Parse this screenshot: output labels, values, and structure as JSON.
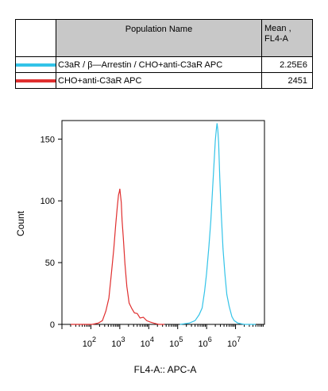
{
  "legend": {
    "header_population": "Population Name",
    "header_mean_line1": "Mean ,",
    "header_mean_line2": "FL4-A",
    "rows": [
      {
        "name": "C3aR / β—Arrestin / CHO+anti-C3aR APC",
        "value": "2.25E6",
        "color": "#33c3e8"
      },
      {
        "name": "CHO+anti-C3aR APC",
        "value": "2451",
        "color": "#e02f2f"
      }
    ]
  },
  "chart_data": {
    "type": "line",
    "xlabel": "FL4-A:: APC-A",
    "ylabel": "Count",
    "x_scale": "log",
    "xlim": [
      10,
      100000000
    ],
    "ylim": [
      0,
      165
    ],
    "y_ticks": [
      0,
      50,
      100,
      150
    ],
    "x_ticks": [
      {
        "base": "10",
        "exp": "2",
        "value": 100
      },
      {
        "base": "10",
        "exp": "3",
        "value": 1000
      },
      {
        "base": "10",
        "exp": "4",
        "value": 10000
      },
      {
        "base": "10",
        "exp": "5",
        "value": 100000
      },
      {
        "base": "10",
        "exp": "6",
        "value": 1000000
      },
      {
        "base": "10",
        "exp": "7",
        "value": 10000000
      }
    ],
    "series": [
      {
        "name": "CHO+anti-C3aR APC",
        "color": "#e02f2f",
        "x": [
          20,
          60,
          110,
          180,
          250,
          330,
          420,
          520,
          620,
          720,
          820,
          900,
          960,
          1000,
          1050,
          1120,
          1200,
          1320,
          1500,
          1750,
          2100,
          2600,
          3200,
          4000,
          5000,
          6500,
          8500,
          11000,
          15000,
          22000,
          35000
        ],
        "y": [
          0,
          0,
          0,
          1,
          3,
          10,
          22,
          42,
          62,
          80,
          96,
          104,
          108,
          109,
          106,
          98,
          85,
          70,
          50,
          30,
          18,
          12,
          10,
          8,
          6,
          5,
          3,
          2,
          1,
          0,
          0
        ]
      },
      {
        "name": "C3aR / β—Arrestin / CHO+anti-C3aR APC",
        "color": "#33c3e8",
        "x": [
          120000,
          250000,
          400000,
          550000,
          700000,
          850000,
          1000000,
          1200000,
          1400000,
          1600000,
          1800000,
          2000000,
          2150000,
          2300000,
          2450000,
          2600000,
          2850000,
          3200000,
          3700000,
          4300000,
          5000000,
          6000000,
          7500000,
          9000000,
          12000000,
          20000000,
          50000000
        ],
        "y": [
          0,
          1,
          3,
          7,
          14,
          26,
          42,
          62,
          85,
          108,
          130,
          148,
          158,
          162,
          158,
          146,
          120,
          90,
          62,
          40,
          25,
          14,
          7,
          3,
          1,
          0,
          0
        ]
      }
    ]
  }
}
